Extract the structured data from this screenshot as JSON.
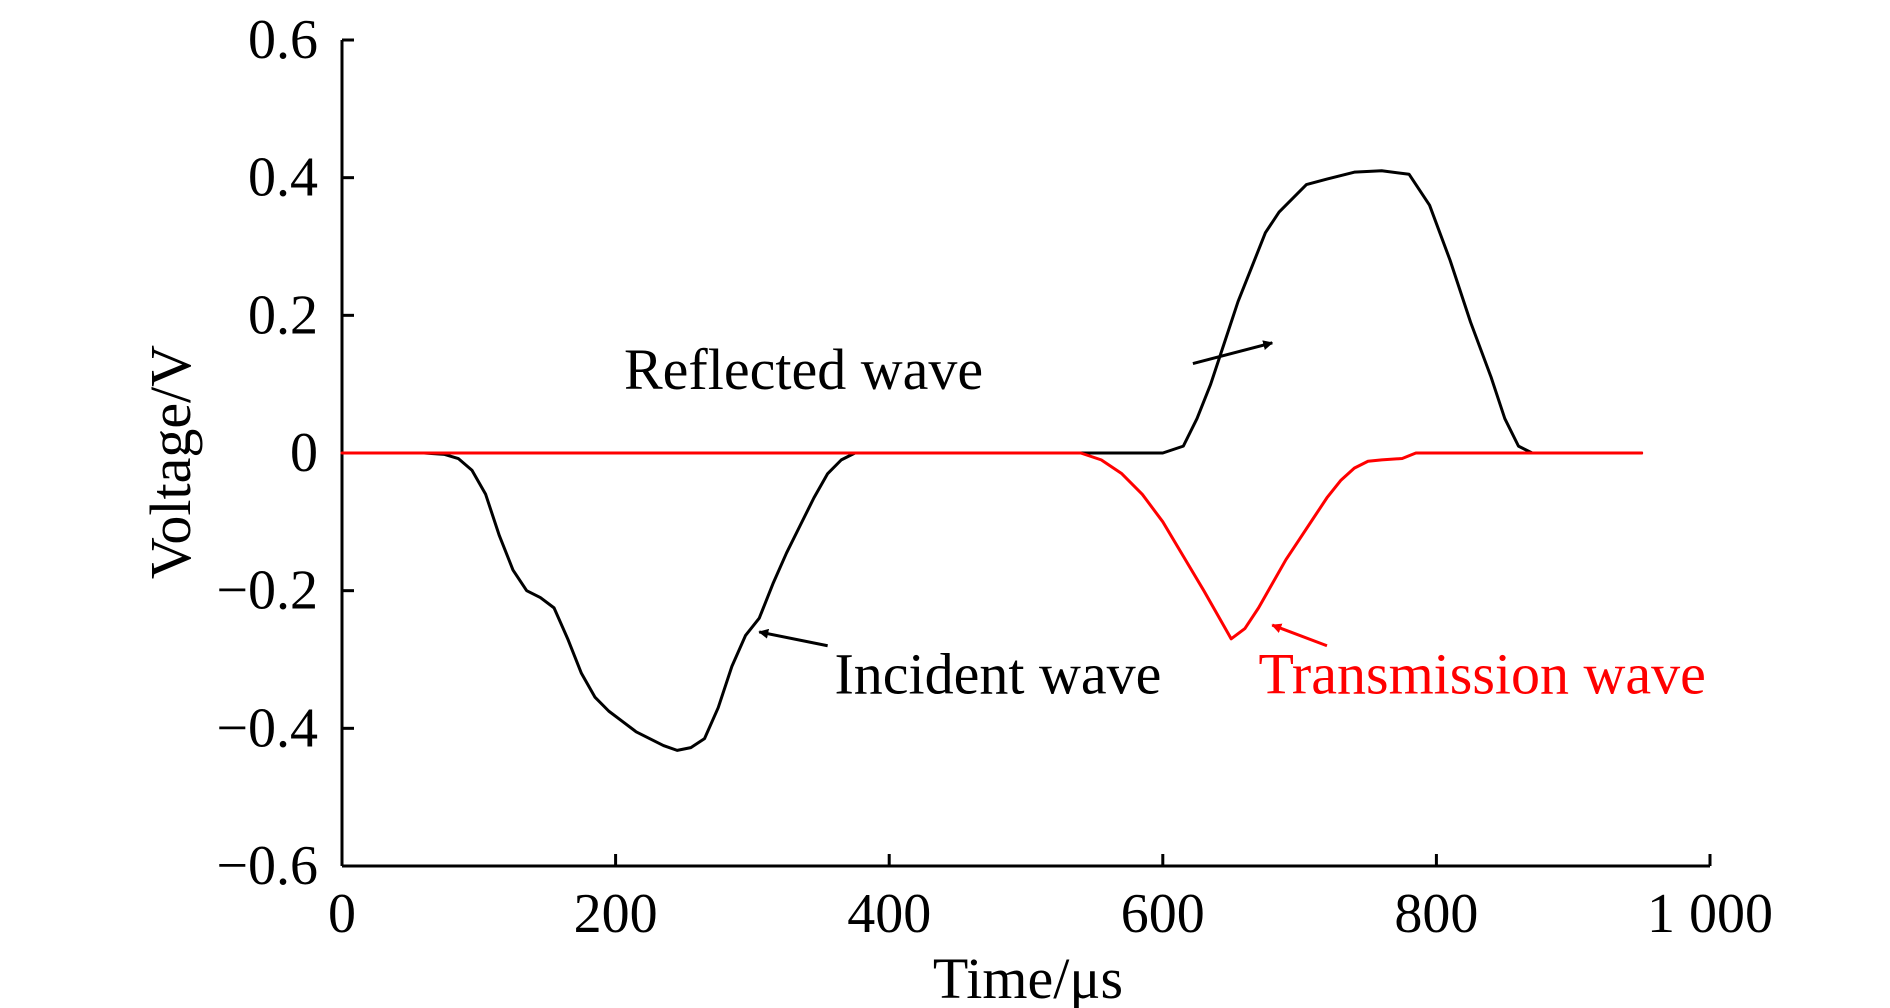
{
  "chart_data": {
    "type": "line",
    "xlabel": "Time/μs",
    "ylabel": "Voltage/V",
    "xlim": [
      0,
      1000
    ],
    "ylim": [
      -0.6,
      0.6
    ],
    "x_ticks": [
      {
        "value": 0,
        "label": "0"
      },
      {
        "value": 200,
        "label": "200"
      },
      {
        "value": 400,
        "label": "400"
      },
      {
        "value": 600,
        "label": "600"
      },
      {
        "value": 800,
        "label": "800"
      },
      {
        "value": 1000,
        "label": "1 000"
      }
    ],
    "y_ticks": [
      {
        "value": 0.6,
        "label": "0.6"
      },
      {
        "value": 0.4,
        "label": "0.4"
      },
      {
        "value": 0.2,
        "label": "0.2"
      },
      {
        "value": 0,
        "label": "0"
      },
      {
        "value": -0.2,
        "label": "−0.2"
      },
      {
        "value": -0.4,
        "label": "−0.4"
      },
      {
        "value": -0.6,
        "label": "−0.6"
      }
    ],
    "grid": false,
    "series": [
      {
        "key": "incident-reflected",
        "color": "#000000",
        "points": [
          [
            0,
            0
          ],
          [
            60,
            0
          ],
          [
            75,
            -0.002
          ],
          [
            85,
            -0.008
          ],
          [
            95,
            -0.025
          ],
          [
            105,
            -0.06
          ],
          [
            115,
            -0.12
          ],
          [
            125,
            -0.17
          ],
          [
            135,
            -0.2
          ],
          [
            145,
            -0.21
          ],
          [
            155,
            -0.225
          ],
          [
            165,
            -0.27
          ],
          [
            175,
            -0.32
          ],
          [
            185,
            -0.355
          ],
          [
            195,
            -0.375
          ],
          [
            205,
            -0.39
          ],
          [
            215,
            -0.405
          ],
          [
            225,
            -0.415
          ],
          [
            235,
            -0.425
          ],
          [
            245,
            -0.432
          ],
          [
            255,
            -0.428
          ],
          [
            265,
            -0.415
          ],
          [
            275,
            -0.37
          ],
          [
            285,
            -0.31
          ],
          [
            295,
            -0.265
          ],
          [
            305,
            -0.24
          ],
          [
            315,
            -0.19
          ],
          [
            325,
            -0.145
          ],
          [
            335,
            -0.105
          ],
          [
            345,
            -0.065
          ],
          [
            355,
            -0.03
          ],
          [
            365,
            -0.01
          ],
          [
            375,
            0
          ],
          [
            600,
            0
          ],
          [
            615,
            0.01
          ],
          [
            625,
            0.05
          ],
          [
            635,
            0.1
          ],
          [
            645,
            0.16
          ],
          [
            655,
            0.22
          ],
          [
            665,
            0.27
          ],
          [
            675,
            0.32
          ],
          [
            685,
            0.35
          ],
          [
            695,
            0.37
          ],
          [
            705,
            0.39
          ],
          [
            720,
            0.398
          ],
          [
            740,
            0.408
          ],
          [
            760,
            0.41
          ],
          [
            780,
            0.405
          ],
          [
            795,
            0.36
          ],
          [
            810,
            0.28
          ],
          [
            825,
            0.19
          ],
          [
            840,
            0.11
          ],
          [
            850,
            0.05
          ],
          [
            860,
            0.01
          ],
          [
            870,
            0
          ],
          [
            950,
            0
          ]
        ]
      },
      {
        "key": "transmission",
        "color": "#ff0000",
        "points": [
          [
            0,
            0
          ],
          [
            540,
            0
          ],
          [
            555,
            -0.01
          ],
          [
            570,
            -0.03
          ],
          [
            585,
            -0.06
          ],
          [
            600,
            -0.1
          ],
          [
            615,
            -0.15
          ],
          [
            630,
            -0.2
          ],
          [
            640,
            -0.235
          ],
          [
            650,
            -0.27
          ],
          [
            660,
            -0.255
          ],
          [
            670,
            -0.225
          ],
          [
            680,
            -0.19
          ],
          [
            690,
            -0.155
          ],
          [
            700,
            -0.125
          ],
          [
            710,
            -0.095
          ],
          [
            720,
            -0.065
          ],
          [
            730,
            -0.04
          ],
          [
            740,
            -0.022
          ],
          [
            750,
            -0.012
          ],
          [
            760,
            -0.01
          ],
          [
            775,
            -0.008
          ],
          [
            785,
            0
          ],
          [
            950,
            0
          ]
        ]
      }
    ],
    "annotations": [
      {
        "key": "reflected",
        "text": "Reflected wave",
        "color": "#000000",
        "text_x": 0.3,
        "text_y": 0.12,
        "anchor": "start",
        "arrow_from": [
          622,
          0.13
        ],
        "arrow_to": [
          680,
          0.16
        ]
      },
      {
        "key": "incident",
        "text": "Incident wave",
        "color": "#000000",
        "text_x": 360,
        "text_y": -0.32,
        "anchor": "start",
        "arrow_from": [
          355,
          -0.28
        ],
        "arrow_to": [
          305,
          -0.26
        ]
      },
      {
        "key": "transmission",
        "text": "Transmission wave",
        "color": "#ff0000",
        "text_x": 670,
        "text_y": -0.32,
        "anchor": "start",
        "arrow_from": [
          720,
          -0.28
        ],
        "arrow_to": [
          680,
          -0.25
        ]
      }
    ]
  }
}
